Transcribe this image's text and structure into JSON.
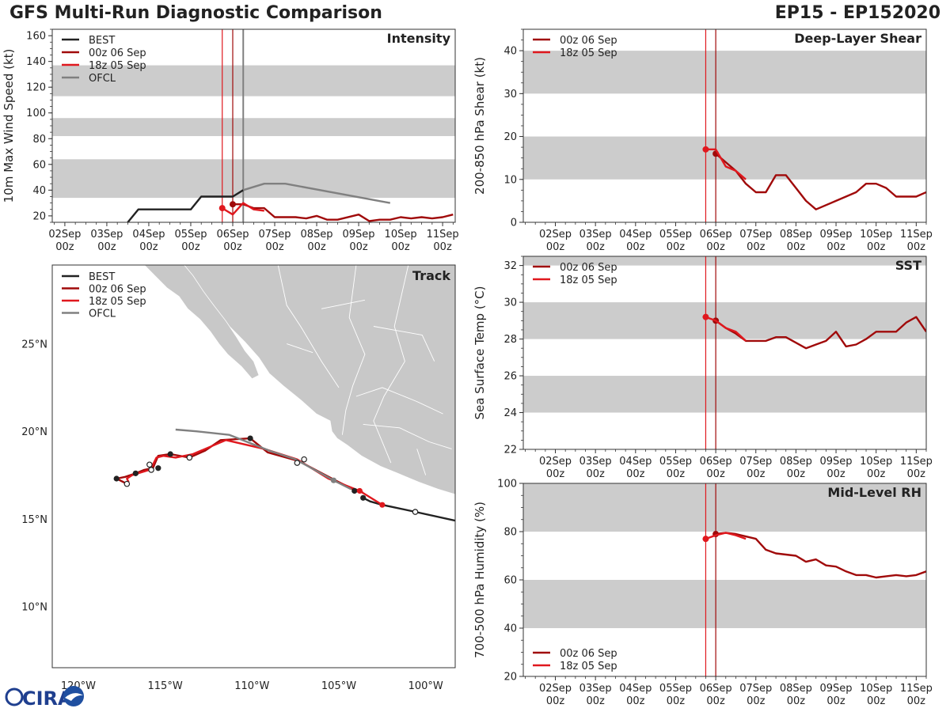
{
  "header": {
    "title": "GFS Multi-Run Diagnostic Comparison",
    "storm_id": "EP15 - EP152020"
  },
  "colors": {
    "best": "#222222",
    "run_00z": "#a00a0a",
    "run_18z": "#e0181e",
    "ofcl": "#808080",
    "band": "#cccccc",
    "land": "#c8c8c8"
  },
  "legend": {
    "best": "BEST",
    "run_00z": "00z 06 Sep",
    "run_18z": "18z 05 Sep",
    "ofcl": "OFCL"
  },
  "time_ticks": [
    "02Sep\n00z",
    "03Sep\n00z",
    "04Sep\n00z",
    "05Sep\n00z",
    "06Sep\n00z",
    "07Sep\n00z",
    "08Sep\n00z",
    "09Sep\n00z",
    "10Sep\n00z",
    "11Sep\n00z"
  ],
  "logo_text": "CIRA",
  "chart_data": [
    {
      "id": "intensity",
      "type": "line",
      "title": "Intensity",
      "ylabel": "10m Max Wind Speed (kt)",
      "xlim": [
        -0.3,
        9.3
      ],
      "ylim": [
        15,
        165
      ],
      "yticks": [
        20,
        40,
        60,
        80,
        100,
        120,
        140,
        160
      ],
      "bands": [
        [
          34,
          64
        ],
        [
          82,
          96
        ],
        [
          113,
          137
        ]
      ],
      "vlines": [
        {
          "x": 3.75,
          "color": "run_18z"
        },
        {
          "x": 4.0,
          "color": "run_00z"
        },
        {
          "x": 4.25,
          "color": "ofcl"
        }
      ],
      "series": [
        {
          "name": "BEST",
          "color": "best",
          "x": [
            1.5,
            1.75,
            2.0,
            3.0,
            3.25,
            4.0,
            4.25
          ],
          "y": [
            15,
            25,
            25,
            25,
            35,
            35,
            40
          ]
        },
        {
          "name": "00z 06 Sep",
          "color": "run_00z",
          "x": [
            4.0,
            4.25,
            4.5,
            4.75,
            5.0,
            5.5,
            5.75,
            6.0,
            6.25,
            6.5,
            7.0,
            7.25,
            7.5,
            7.75,
            8.0,
            8.25,
            8.5,
            8.75,
            9.0,
            9.25
          ],
          "y": [
            29,
            29,
            26,
            26,
            19,
            19,
            18,
            20,
            17,
            17,
            21,
            16,
            17,
            17,
            19,
            18,
            19,
            18,
            19,
            21
          ]
        },
        {
          "name": "18z 05 Sep",
          "color": "run_18z",
          "x": [
            3.75,
            4.0,
            4.25,
            4.5,
            4.75
          ],
          "y": [
            26,
            21,
            30,
            25,
            24
          ]
        },
        {
          "name": "OFCL",
          "color": "ofcl",
          "x": [
            4.25,
            4.75,
            5.25,
            7.75
          ],
          "y": [
            40,
            45,
            45,
            30
          ]
        }
      ]
    },
    {
      "id": "shear",
      "type": "line",
      "title": "Deep-Layer Shear",
      "ylabel": "200-850 hPa Shear (kt)",
      "xlim": [
        -0.8,
        9.25
      ],
      "ylim": [
        0,
        45
      ],
      "yticks": [
        0,
        10,
        20,
        30,
        40
      ],
      "bands": [
        [
          10,
          20
        ],
        [
          30,
          40
        ]
      ],
      "vlines": [
        {
          "x": 3.75,
          "color": "run_18z"
        },
        {
          "x": 4.0,
          "color": "run_00z"
        }
      ],
      "series": [
        {
          "name": "00z 06 Sep",
          "color": "run_00z",
          "x": [
            4.0,
            4.25,
            4.5,
            4.75,
            5.0,
            5.25,
            5.5,
            5.75,
            6.0,
            6.25,
            6.5,
            7.0,
            7.5,
            7.75,
            8.0,
            8.25,
            8.5,
            8.75,
            9.0,
            9.25
          ],
          "y": [
            16,
            14,
            12,
            9,
            7,
            7,
            11,
            11,
            8,
            5,
            3,
            5,
            7,
            9,
            9,
            8,
            6,
            6,
            6,
            7
          ]
        },
        {
          "name": "18z 05 Sep",
          "color": "run_18z",
          "x": [
            3.75,
            4.0,
            4.25,
            4.5,
            4.75
          ],
          "y": [
            17,
            17,
            13,
            12,
            10
          ]
        }
      ]
    },
    {
      "id": "sst",
      "type": "line",
      "title": "SST",
      "ylabel": "Sea Surface Temp (°C)",
      "xlim": [
        -0.8,
        9.25
      ],
      "ylim": [
        22,
        32.5
      ],
      "yticks": [
        22,
        24,
        26,
        28,
        30,
        32
      ],
      "bands": [
        [
          24,
          26
        ],
        [
          28,
          30
        ],
        [
          32,
          34
        ]
      ],
      "vlines": [
        {
          "x": 3.75,
          "color": "run_18z"
        },
        {
          "x": 4.0,
          "color": "run_00z"
        }
      ],
      "series": [
        {
          "name": "00z 06 Sep",
          "color": "run_00z",
          "x": [
            4.0,
            4.25,
            4.5,
            4.75,
            5.0,
            5.25,
            5.5,
            5.75,
            6.0,
            6.25,
            6.5,
            6.75,
            7.0,
            7.25,
            7.5,
            7.75,
            8.0,
            8.25,
            8.5,
            8.75,
            9.0,
            9.25
          ],
          "y": [
            29.0,
            28.6,
            28.3,
            27.9,
            27.9,
            27.9,
            28.1,
            28.1,
            27.8,
            27.5,
            27.7,
            27.9,
            28.4,
            27.6,
            27.7,
            28.0,
            28.4,
            28.4,
            28.4,
            28.9,
            29.2,
            28.4
          ]
        },
        {
          "name": "18z 05 Sep",
          "color": "run_18z",
          "x": [
            3.75,
            4.0,
            4.25,
            4.5,
            4.75
          ],
          "y": [
            29.2,
            29.0,
            28.6,
            28.4,
            27.9
          ]
        }
      ]
    },
    {
      "id": "rh",
      "type": "line",
      "title": "Mid-Level RH",
      "ylabel": "700-500 hPa Humidity (%)",
      "xlim": [
        -0.8,
        9.25
      ],
      "ylim": [
        20,
        100
      ],
      "yticks": [
        20,
        40,
        60,
        80,
        100
      ],
      "bands": [
        [
          40,
          60
        ],
        [
          80,
          100
        ]
      ],
      "vlines": [
        {
          "x": 3.75,
          "color": "run_18z"
        },
        {
          "x": 4.0,
          "color": "run_00z"
        }
      ],
      "series": [
        {
          "name": "00z 06 Sep",
          "color": "run_00z",
          "x": [
            4.0,
            4.25,
            4.5,
            4.75,
            5.0,
            5.25,
            5.5,
            5.75,
            6.0,
            6.25,
            6.5,
            6.75,
            7.0,
            7.25,
            7.5,
            7.75,
            8.0,
            8.25,
            8.5,
            8.75,
            9.0,
            9.25
          ],
          "y": [
            79,
            79.5,
            79,
            78,
            77,
            72.5,
            71,
            70.5,
            70,
            67.5,
            68.5,
            66,
            65.5,
            63.5,
            62,
            62,
            61,
            61.5,
            62,
            61.5,
            62,
            63.5
          ]
        },
        {
          "name": "18z 05 Sep",
          "color": "run_18z",
          "x": [
            3.75,
            4.0,
            4.25,
            4.5,
            4.75
          ],
          "y": [
            77,
            78.5,
            79.5,
            78.5,
            77
          ]
        }
      ]
    },
    {
      "id": "track",
      "type": "scatter",
      "title": "Track",
      "lon_ticks": [
        -120,
        -115,
        -110,
        -105,
        -100
      ],
      "lon_labels": [
        "120°W",
        "115°W",
        "110°W",
        "105°W",
        "100°W"
      ],
      "lat_ticks": [
        10,
        15,
        20,
        25
      ],
      "lat_labels": [
        "10°N",
        "15°N",
        "20°N",
        "25°N"
      ],
      "lon_range": [
        -121.5,
        -98.3
      ],
      "lat_range": [
        6.5,
        29.5
      ],
      "series": [
        {
          "name": "BEST",
          "color": "best",
          "lon": [
            -98.3,
            -100.6,
            -102.0,
            -102.5,
            -103.2,
            -103.6
          ],
          "lat": [
            14.9,
            15.4,
            15.7,
            15.8,
            16.0,
            16.2
          ]
        },
        {
          "name": "00z 06 Sep",
          "color": "run_00z",
          "lon": [
            -103.6,
            -104.0,
            -105.2,
            -107.3,
            -109.1,
            -110.1,
            -111.8,
            -112.7,
            -113.6,
            -114.7,
            -115.4,
            -115.7,
            -116.2,
            -116.7,
            -117.3,
            -117.8,
            -117.2
          ],
          "lat": [
            16.5,
            16.6,
            17.2,
            18.3,
            18.8,
            19.6,
            19.5,
            18.9,
            18.5,
            18.7,
            18.6,
            17.9,
            17.8,
            17.6,
            17.4,
            17.3,
            17.0
          ]
        },
        {
          "name": "18z 05 Sep",
          "color": "run_18z",
          "lon": [
            -102.5,
            -103.8,
            -105.6,
            -107.4,
            -109.3,
            -111.5,
            -113.4,
            -114.4,
            -115.1,
            -115.5,
            -115.7,
            -115.9,
            -116.9,
            -117.2,
            -117.1
          ],
          "lat": [
            15.8,
            16.6,
            17.3,
            18.4,
            19.0,
            19.5,
            18.7,
            18.5,
            18.6,
            18.5,
            18.1,
            17.8,
            17.5,
            17.3,
            17.1
          ]
        },
        {
          "name": "OFCL",
          "color": "ofcl",
          "lon": [
            -104.3,
            -105.3,
            -107.5,
            -109.0,
            -111.3,
            -113.2,
            -114.4
          ],
          "lat": [
            16.7,
            17.2,
            18.4,
            18.9,
            19.8,
            20.0,
            20.1
          ]
        }
      ],
      "closed_dots": [
        {
          "color": "best",
          "lon": -103.6,
          "lat": 16.2
        },
        {
          "color": "best",
          "lon": -104.1,
          "lat": 16.6
        },
        {
          "color": "best",
          "lon": -110.1,
          "lat": 19.6
        },
        {
          "color": "best",
          "lon": -114.7,
          "lat": 18.7
        },
        {
          "color": "best",
          "lon": -115.4,
          "lat": 17.9
        },
        {
          "color": "best",
          "lon": -116.7,
          "lat": 17.6
        },
        {
          "color": "best",
          "lon": -117.8,
          "lat": 17.3
        },
        {
          "color": "run_18z",
          "lon": -102.5,
          "lat": 15.8
        },
        {
          "color": "run_18z",
          "lon": -103.8,
          "lat": 16.6
        },
        {
          "color": "ofcl",
          "lon": -105.3,
          "lat": 17.2
        }
      ],
      "open_dots": [
        {
          "lon": -100.6,
          "lat": 15.4
        },
        {
          "lon": -107.0,
          "lat": 18.4
        },
        {
          "lon": -107.4,
          "lat": 18.2
        },
        {
          "lon": -113.6,
          "lat": 18.5
        },
        {
          "lon": -115.9,
          "lat": 18.1
        },
        {
          "lon": -115.8,
          "lat": 17.8
        },
        {
          "lon": -117.2,
          "lat": 17.0
        }
      ]
    }
  ]
}
